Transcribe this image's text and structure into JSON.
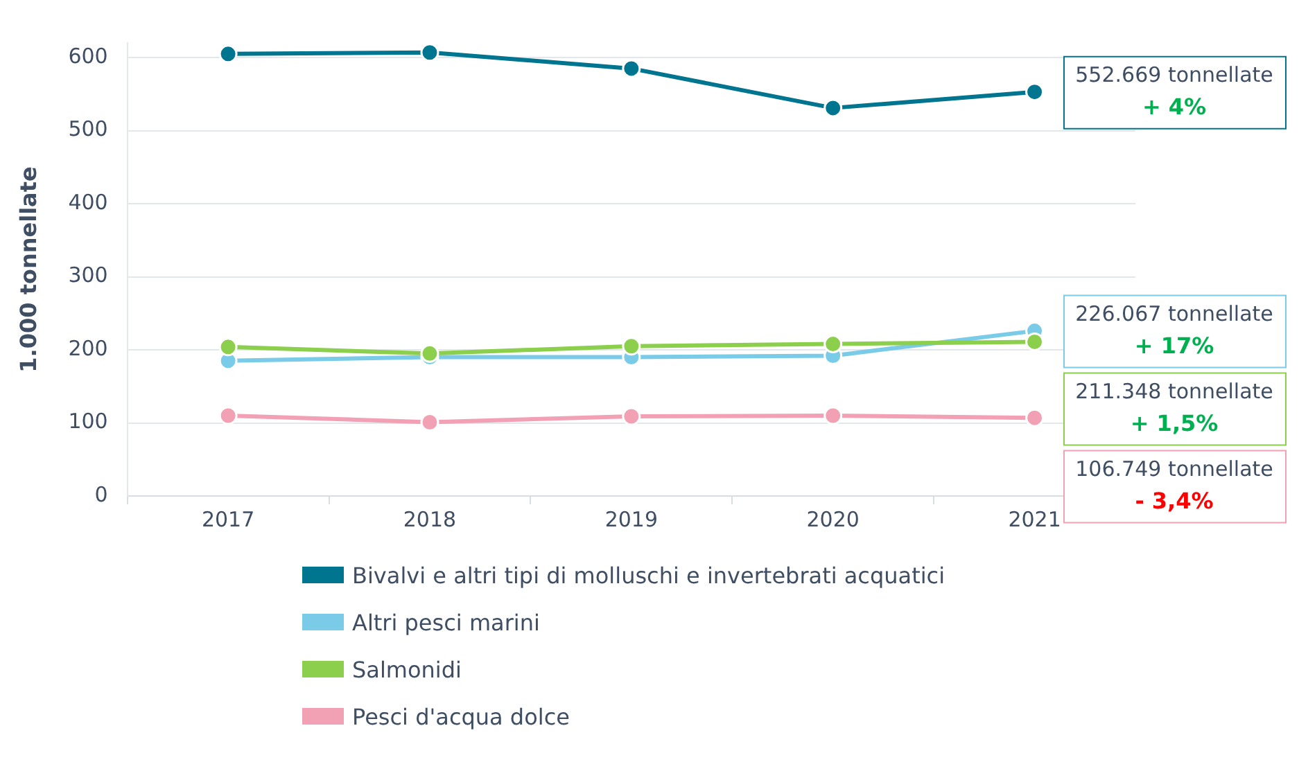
{
  "chart_data": {
    "type": "line",
    "ylabel": "1.000 tonnellate",
    "categories": [
      "2017",
      "2018",
      "2019",
      "2020",
      "2021"
    ],
    "series": [
      {
        "name": "Bivalvi e altri tipi di molluschi e invertebrati acquatici",
        "color": "#00758f",
        "values": [
          605,
          607,
          585,
          531,
          553
        ]
      },
      {
        "name": "Altri pesci marini",
        "color": "#79cbe8",
        "values": [
          185,
          190,
          190,
          192,
          226
        ]
      },
      {
        "name": "Salmonidi",
        "color": "#8ccf4d",
        "values": [
          204,
          195,
          205,
          208,
          211
        ]
      },
      {
        "name": "Pesci d'acqua dolce",
        "color": "#f2a1b4",
        "values": [
          110,
          101,
          109,
          110,
          107
        ]
      }
    ],
    "ylim": [
      0,
      620
    ],
    "yticks": [
      0,
      100,
      200,
      300,
      400,
      500,
      600
    ],
    "grid": "y",
    "legend": "bottom",
    "marker": "circle",
    "line_style": "solid",
    "annotations": [
      {
        "text": "552.669 tonnellate",
        "x": "2021",
        "y": 553
      },
      "+ 4%",
      {
        "text": "226.067 tonnellate",
        "x": "2021",
        "y": 226
      },
      "+ 17%",
      {
        "text": "211.348 tonnellate",
        "x": "2021",
        "y": 211
      },
      "+ 1,5%",
      {
        "text": "106.749 tonnellate",
        "x": "2021",
        "y": 107
      },
      "- 3,4%"
    ]
  }
}
